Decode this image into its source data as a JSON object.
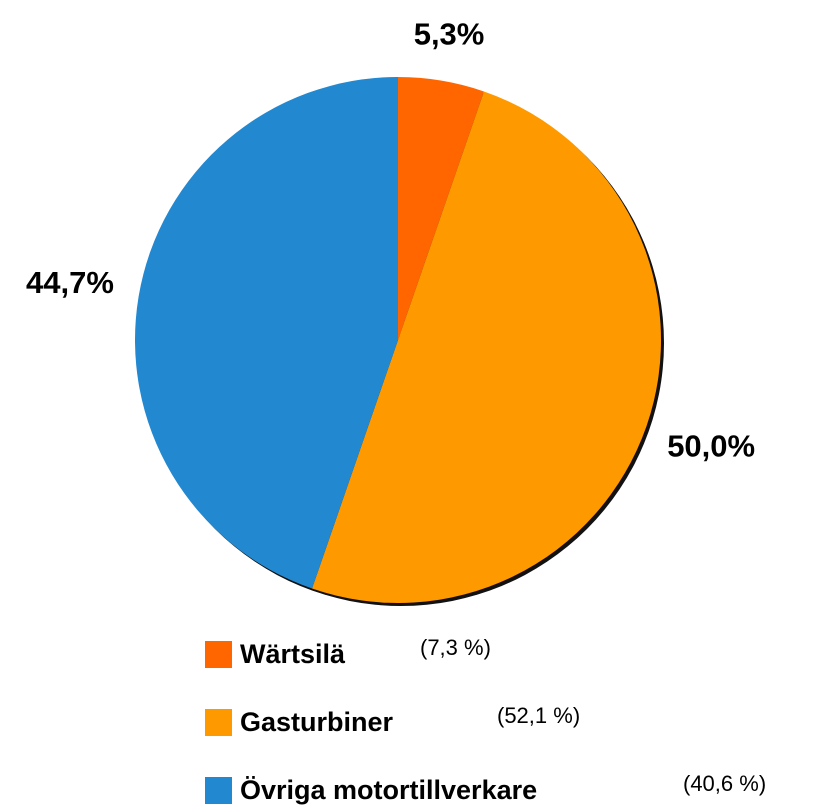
{
  "chart_data": {
    "type": "pie",
    "categories": [
      "Wärtsilä",
      "Gasturbiner",
      "Övriga motortillverkare"
    ],
    "values": [
      5.3,
      50.0,
      44.7
    ],
    "value_labels": [
      "5,3%",
      "50,0%",
      "44,7%"
    ],
    "colors": [
      "#ff6600",
      "#ff9900",
      "#2288d0"
    ],
    "legend_notes": [
      "(7,3 %)",
      "(52,1 %)",
      "(40,6 %)"
    ]
  }
}
